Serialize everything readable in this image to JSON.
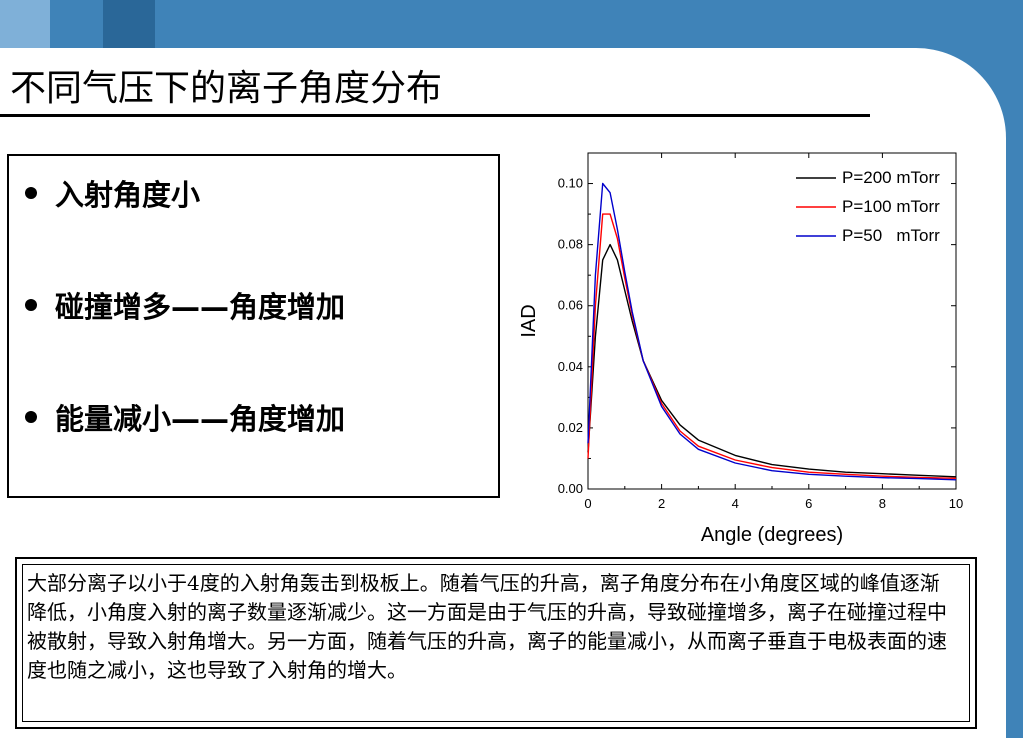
{
  "title": "不同气压下的离子角度分布",
  "bullets": [
    "入射角度小",
    "碰撞增多——角度增加",
    "能量减小——角度增加"
  ],
  "description": "大部分离子以小于4度的入射角轰击到极板上。随着气压的升高，离子角度分布在小角度区域的峰值逐渐降低，小角度入射的离子数量逐渐减少。这一方面是由于气压的升高，导致碰撞增多，离子在碰撞过程中被散射，导致入射角增大。另一方面，随着气压的升高，离子的能量减小，从而离子垂直于电极表面的速度也随之减小，这也导致了入射角的增大。",
  "colors": {
    "background_blue": "#3f83b8",
    "series_200": "#000000",
    "series_100": "#ff0000",
    "series_50": "#0000cc"
  },
  "chart_data": {
    "type": "line",
    "xlabel": "Angle (degrees)",
    "ylabel": "IAD",
    "xlim": [
      0,
      10
    ],
    "ylim": [
      0,
      0.11
    ],
    "xticks": [
      "0",
      "2",
      "4",
      "6",
      "8",
      "10"
    ],
    "yticks": [
      "0.00",
      "0.02",
      "0.04",
      "0.06",
      "0.08",
      "0.10"
    ],
    "legend_position": "top-right",
    "series": [
      {
        "name": "P=200 mTorr",
        "color": "#000000",
        "x": [
          0,
          0.2,
          0.4,
          0.6,
          0.8,
          1.0,
          1.2,
          1.5,
          2.0,
          2.5,
          3.0,
          4.0,
          5.0,
          6.0,
          7.0,
          8.0,
          9.0,
          10.0
        ],
        "y": [
          0.012,
          0.05,
          0.075,
          0.08,
          0.075,
          0.065,
          0.055,
          0.042,
          0.029,
          0.021,
          0.016,
          0.011,
          0.008,
          0.0065,
          0.0055,
          0.005,
          0.0045,
          0.004
        ]
      },
      {
        "name": "P=100 mTorr",
        "color": "#ff0000",
        "x": [
          0,
          0.2,
          0.4,
          0.6,
          0.8,
          1.0,
          1.2,
          1.5,
          2.0,
          2.5,
          3.0,
          4.0,
          5.0,
          6.0,
          7.0,
          8.0,
          9.0,
          10.0
        ],
        "y": [
          0.01,
          0.06,
          0.09,
          0.09,
          0.082,
          0.069,
          0.057,
          0.042,
          0.028,
          0.019,
          0.014,
          0.0095,
          0.007,
          0.0055,
          0.0048,
          0.0042,
          0.0038,
          0.0035
        ]
      },
      {
        "name": "P=50   mTorr",
        "color": "#0000cc",
        "x": [
          0,
          0.2,
          0.4,
          0.6,
          0.8,
          1.0,
          1.2,
          1.5,
          2.0,
          2.5,
          3.0,
          4.0,
          5.0,
          6.0,
          7.0,
          8.0,
          9.0,
          10.0
        ],
        "y": [
          0.015,
          0.07,
          0.1,
          0.097,
          0.085,
          0.071,
          0.058,
          0.042,
          0.027,
          0.018,
          0.013,
          0.0085,
          0.006,
          0.0048,
          0.0042,
          0.0037,
          0.0034,
          0.003
        ]
      }
    ]
  }
}
